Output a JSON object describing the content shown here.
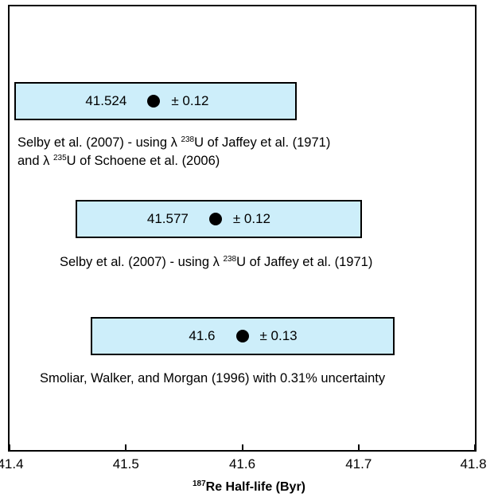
{
  "chart_data": {
    "type": "interval",
    "xlim": [
      41.4,
      41.8
    ],
    "x_ticks": [
      "41.4",
      "41.5",
      "41.6",
      "41.7",
      "41.8"
    ],
    "x_tick_values": [
      41.4,
      41.5,
      41.6,
      41.7,
      41.8
    ],
    "x_axis": {
      "iso": "187",
      "main": "Re Half-life (Byr)"
    },
    "estimates": [
      {
        "label": "41.524",
        "value": 41.524,
        "uncertainty_label": "± 0.12",
        "box_range": [
          41.404,
          41.647
        ],
        "caption_lines": [
          [
            "Selby et al. (2007) - using λ ",
            "238",
            "U of Jaffey et al. (1971)"
          ],
          [
            "and λ ",
            "235",
            "U of Schoene et al. (2006)"
          ]
        ]
      },
      {
        "label": "41.577",
        "value": 41.577,
        "uncertainty_label": "± 0.12",
        "box_range": [
          41.457,
          41.703
        ],
        "caption_lines": [
          [
            "Selby et al. (2007) - using λ ",
            "238",
            "U of Jaffey et al. (1971)"
          ]
        ]
      },
      {
        "label": "41.6",
        "value": 41.6,
        "uncertainty_label": "± 0.13",
        "box_range": [
          41.47,
          41.731
        ],
        "caption_lines": [
          [
            "Smoliar, Walker, and Morgan (1996) with 0.31% uncertainty"
          ]
        ]
      }
    ],
    "colors": {
      "box_fill": "#cdeefa",
      "point": "#000000"
    }
  }
}
